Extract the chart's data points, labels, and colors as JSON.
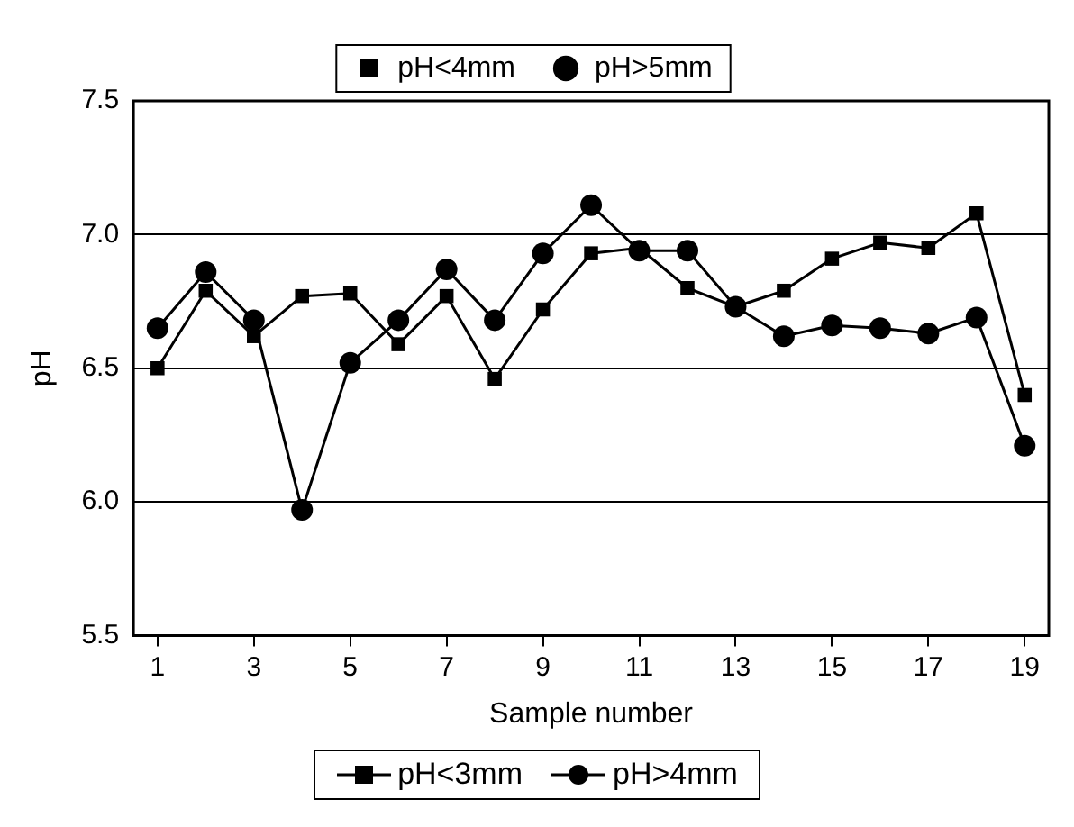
{
  "chart_data": {
    "type": "line",
    "xlabel": "Sample number",
    "ylabel": "pH",
    "x": [
      1,
      2,
      3,
      4,
      5,
      6,
      7,
      8,
      9,
      10,
      11,
      12,
      13,
      14,
      15,
      16,
      17,
      18,
      19
    ],
    "xlim": [
      0.5,
      19.5
    ],
    "xticks": [
      1,
      3,
      5,
      7,
      9,
      11,
      13,
      15,
      17,
      19
    ],
    "series": [
      {
        "name": "pH<4mm",
        "color": "#000000",
        "marker": "square",
        "values": [
          6.5,
          6.79,
          6.62,
          6.77,
          6.78,
          6.59,
          6.77,
          6.46,
          6.72,
          6.93,
          6.95,
          6.8,
          6.73,
          6.79,
          6.91,
          6.97,
          6.95,
          7.08,
          6.4
        ]
      },
      {
        "name": "pH>5mm",
        "color": "#000000",
        "marker": "circle",
        "values": [
          6.65,
          6.86,
          6.68,
          5.97,
          6.52,
          6.68,
          6.87,
          6.68,
          6.93,
          7.11,
          6.94,
          6.94,
          6.73,
          6.62,
          6.66,
          6.65,
          6.63,
          6.69,
          6.21
        ]
      }
    ],
    "ylim": [
      5.5,
      7.5
    ],
    "yticks": [
      5.5,
      {
        "value": 6,
        "label": "6.0"
      },
      6.5,
      {
        "value": 7,
        "label": "7.0"
      },
      7.5
    ],
    "grid": "y",
    "legend": "top",
    "line_style": "solid",
    "annotations": [
      "pH<3mm",
      "pH>4mm"
    ]
  }
}
